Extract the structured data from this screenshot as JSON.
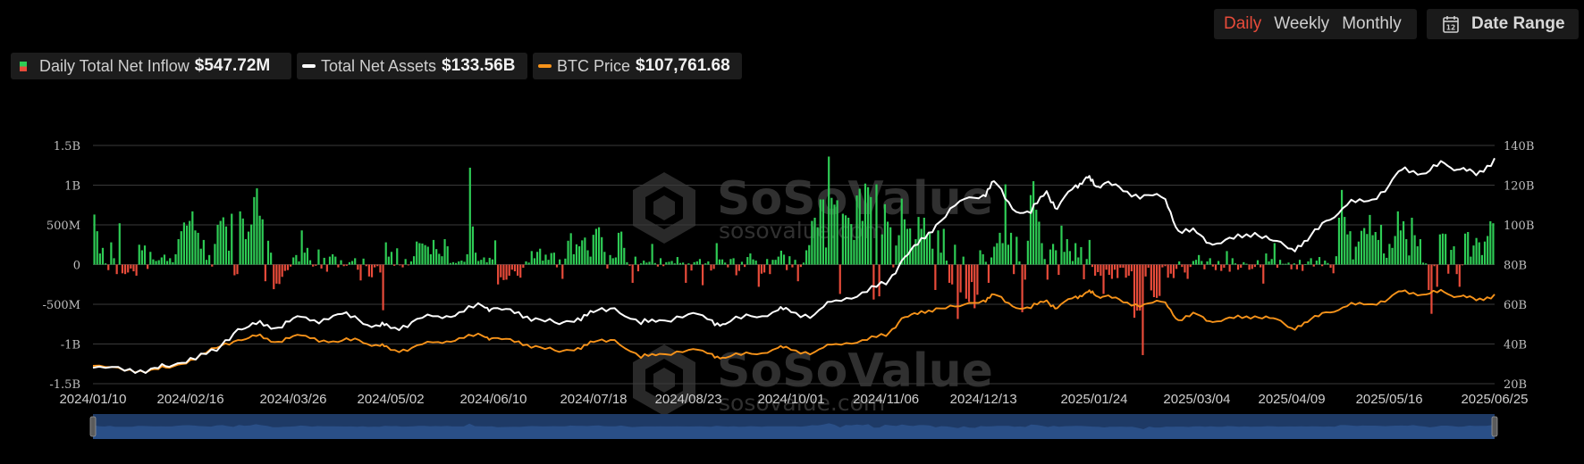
{
  "controls": {
    "tabs": [
      "Daily",
      "Weekly",
      "Monthly"
    ],
    "active_tab": "Daily",
    "date_range_label": "Date Range",
    "calendar_icon": "calendar-icon",
    "calendar_day": "12"
  },
  "legend": [
    {
      "label": "Daily Total Net Inflow",
      "value": "$547.72M",
      "swatch": "bicolor"
    },
    {
      "label": "Total Net Assets",
      "value": "$133.56B",
      "swatch": "white-line"
    },
    {
      "label": "BTC Price",
      "value": "$107,761.68",
      "swatch": "orange-line"
    }
  ],
  "watermark": {
    "brand": "SoSoValue",
    "url": "sosovalue.com"
  },
  "colors": {
    "inflow_pos": "#2ecc55",
    "inflow_neg": "#e84b3a",
    "assets": "#ffffff",
    "btc": "#f7931a",
    "active_tab": "#e84b3a",
    "navigator": "#1e3a66"
  },
  "chart_data": {
    "type": "bar",
    "x_ticks": [
      "2024/01/10",
      "2024/02/16",
      "2024/03/26",
      "2024/05/02",
      "2024/06/10",
      "2024/07/18",
      "2024/08/23",
      "2024/10/01",
      "2024/11/06",
      "2024/12/13",
      "2025/01/24",
      "2025/03/04",
      "2025/04/09",
      "2025/05/16",
      "2025/06/25"
    ],
    "y_left_ticks": [
      "1.5B",
      "1B",
      "500M",
      "0",
      "-500M",
      "-1B",
      "-1.5B"
    ],
    "y_left_range": [
      -1500,
      1500
    ],
    "y_left_unit": "M USD",
    "y_right_ticks": [
      "140B",
      "120B",
      "100B",
      "80B",
      "60B",
      "40B",
      "20B"
    ],
    "y_right_range": [
      20,
      140
    ],
    "y_right_unit": "B",
    "grid": true,
    "series": [
      {
        "name": "Daily Total Net Inflow",
        "type": "bar",
        "axis": "left",
        "values": [
          630,
          420,
          140,
          210,
          15,
          -70,
          280,
          80,
          -120,
          520,
          -110,
          -120,
          -100,
          -50,
          -85,
          -140,
          250,
          180,
          240,
          -55,
          160,
          65,
          45,
          55,
          90,
          125,
          45,
          80,
          30,
          130,
          320,
          420,
          530,
          490,
          550,
          670,
          430,
          400,
          200,
          310,
          60,
          120,
          -25,
          260,
          500,
          550,
          595,
          480,
          175,
          640,
          -135,
          -120,
          670,
          580,
          320,
          415,
          505,
          850,
          960,
          615,
          570,
          -210,
          300,
          150,
          -310,
          -240,
          -245,
          -155,
          -80,
          -70,
          -25,
          90,
          120,
          40,
          430,
          150,
          210,
          55,
          -25,
          -15,
          190,
          -50,
          85,
          -90,
          100,
          130,
          100,
          -35,
          55,
          -20,
          -15,
          30,
          45,
          80,
          -65,
          -200,
          75,
          -20,
          -150,
          -160,
          -35,
          -20,
          -100,
          -575,
          280,
          100,
          160,
          -15,
          205,
          -10,
          -35,
          70,
          -10,
          40,
          105,
          290,
          270,
          265,
          245,
          225,
          130,
          310,
          195,
          135,
          105,
          320,
          230,
          20,
          30,
          20,
          40,
          50,
          35,
          130,
          1220,
          480,
          150,
          45,
          60,
          90,
          30,
          85,
          65,
          305,
          -250,
          -160,
          -195,
          -190,
          -140,
          -65,
          -85,
          -140,
          -165,
          -40,
          40,
          25,
          170,
          80,
          160,
          200,
          50,
          125,
          60,
          145,
          150,
          -35,
          65,
          -180,
          75,
          300,
          395,
          130,
          255,
          230,
          305,
          340,
          180,
          100,
          375,
          450,
          470,
          345,
          160,
          -50,
          120,
          80,
          90,
          400,
          415,
          210,
          30,
          -15,
          -230,
          100,
          -85,
          15,
          50,
          25,
          35,
          260,
          20,
          -25,
          80,
          -20,
          30,
          35,
          45,
          15,
          95,
          20,
          25,
          -230,
          15,
          -75,
          30,
          40,
          70,
          -260,
          15,
          40,
          -75,
          -55,
          270,
          65,
          65,
          25,
          -35,
          70,
          80,
          -135,
          -80,
          35,
          -30,
          95,
          140,
          65,
          50,
          -280,
          -115,
          -100,
          70,
          -120,
          60,
          60,
          100,
          175,
          125,
          -70,
          105,
          -35,
          60,
          -210,
          -30,
          25,
          180,
          245,
          550,
          590,
          470,
          820,
          820,
          215,
          1360,
          840,
          755,
          810,
          -370,
          640,
          620,
          590,
          510,
          310,
          870,
          955,
          550,
          1020,
          975,
          850,
          -440,
          1010,
          -400,
          380,
          760,
          540,
          470,
          -35,
          240,
          370,
          830,
          570,
          450,
          455,
          210,
          320,
          600,
          450,
          590,
          380,
          400,
          200,
          -320,
          430,
          150,
          450,
          50,
          -230,
          -250,
          250,
          -685,
          -350,
          100,
          -430,
          -470,
          -220,
          -550,
          -380,
          180,
          130,
          35,
          -230,
          90,
          225,
          270,
          400,
          270,
          1010,
          250,
          400,
          -120,
          350,
          40,
          -600,
          -190,
          300,
          875,
          1050,
          690,
          540,
          270,
          70,
          -190,
          190,
          260,
          180,
          -130,
          490,
          160,
          320,
          170,
          45,
          270,
          90,
          220,
          -185,
          70,
          310,
          -30,
          -140,
          -95,
          -140,
          -370,
          -65,
          -130,
          -180,
          -65,
          -170,
          -40,
          -40,
          -165,
          -140,
          -85,
          -670,
          -580,
          -580,
          -1140,
          -150,
          -40,
          -325,
          -410,
          -420,
          -395,
          -35,
          -20,
          -165,
          -115,
          -170,
          -55,
          40,
          -30,
          -100,
          -180,
          -30,
          45,
          60,
          120,
          45,
          -60,
          40,
          80,
          -25,
          -70,
          45,
          -80,
          -40,
          170,
          -90,
          80,
          15,
          -65,
          -40,
          30,
          10,
          -65,
          -55,
          -30,
          55,
          -35,
          -240,
          140,
          40,
          70,
          270,
          -40,
          60,
          10,
          10,
          25,
          -60,
          15,
          -60,
          60,
          -80,
          5,
          40,
          80,
          -25,
          50,
          95,
          -20,
          50,
          20,
          -40,
          -110,
          105,
          590,
          940,
          600,
          380,
          420,
          65,
          225,
          290,
          425,
          460,
          385,
          625,
          370,
          410,
          310,
          500,
          140,
          85,
          260,
          210,
          360,
          670,
          430,
          545,
          320,
          115,
          590,
          370,
          230,
          320,
          25,
          15,
          -320,
          -620,
          -20,
          -280,
          380,
          390,
          385,
          -115,
          185,
          230,
          -120,
          -280,
          -1,
          390,
          410,
          100,
          240,
          335,
          280,
          120,
          290,
          360,
          545,
          520
        ]
      },
      {
        "name": "Total Net Assets",
        "type": "line",
        "axis": "right",
        "points": [
          [
            "2024/01/10",
            28.0
          ],
          [
            "2024/01/22",
            26.5
          ],
          [
            "2024/02/01",
            27.6
          ],
          [
            "2024/02/08",
            28.5
          ],
          [
            "2024/02/16",
            33.0
          ],
          [
            "2024/02/26",
            36.5
          ],
          [
            "2024/03/05",
            47.5
          ],
          [
            "2024/03/12",
            50.0
          ],
          [
            "2024/03/19",
            48.0
          ],
          [
            "2024/03/26",
            53.0
          ],
          [
            "2024/04/03",
            52.0
          ],
          [
            "2024/04/12",
            55.0
          ],
          [
            "2024/04/20",
            52.0
          ],
          [
            "2024/04/28",
            49.0
          ],
          [
            "2024/05/02",
            48.0
          ],
          [
            "2024/05/10",
            51.0
          ],
          [
            "2024/05/20",
            54.0
          ],
          [
            "2024/05/28",
            56.0
          ],
          [
            "2024/06/06",
            59.0
          ],
          [
            "2024/06/10",
            58.0
          ],
          [
            "2024/06/18",
            55.5
          ],
          [
            "2024/06/26",
            53.0
          ],
          [
            "2024/07/05",
            50.0
          ],
          [
            "2024/07/12",
            53.0
          ],
          [
            "2024/07/18",
            56.0
          ],
          [
            "2024/07/26",
            58.0
          ],
          [
            "2024/08/05",
            50.0
          ],
          [
            "2024/08/12",
            52.0
          ],
          [
            "2024/08/23",
            55.0
          ],
          [
            "2024/09/01",
            52.0
          ],
          [
            "2024/09/06",
            50.0
          ],
          [
            "2024/09/16",
            54.0
          ],
          [
            "2024/09/26",
            57.0
          ],
          [
            "2024/10/01",
            56.0
          ],
          [
            "2024/10/10",
            55.0
          ],
          [
            "2024/10/18",
            62.0
          ],
          [
            "2024/10/28",
            66.0
          ],
          [
            "2024/11/06",
            70.0
          ],
          [
            "2024/11/12",
            82.0
          ],
          [
            "2024/11/18",
            90.0
          ],
          [
            "2024/11/25",
            100.0
          ],
          [
            "2024/12/04",
            112.0
          ],
          [
            "2024/12/13",
            115.0
          ],
          [
            "2024/12/17",
            122.0
          ],
          [
            "2024/12/24",
            108.0
          ],
          [
            "2024/12/31",
            106.0
          ],
          [
            "2025/01/06",
            117.0
          ],
          [
            "2025/01/10",
            108.0
          ],
          [
            "2025/01/17",
            120.0
          ],
          [
            "2025/01/21",
            124.0
          ],
          [
            "2025/01/24",
            120.0
          ],
          [
            "2025/01/28",
            121.0
          ],
          [
            "2025/02/04",
            117.0
          ],
          [
            "2025/02/12",
            115.0
          ],
          [
            "2025/02/20",
            113.0
          ],
          [
            "2025/02/25",
            97.0
          ],
          [
            "2025/03/04",
            96.0
          ],
          [
            "2025/03/10",
            90.0
          ],
          [
            "2025/03/18",
            93.0
          ],
          [
            "2025/03/26",
            96.0
          ],
          [
            "2025/04/02",
            92.0
          ],
          [
            "2025/04/09",
            88.0
          ],
          [
            "2025/04/15",
            92.0
          ],
          [
            "2025/04/22",
            102.0
          ],
          [
            "2025/04/30",
            110.0
          ],
          [
            "2025/05/08",
            112.0
          ],
          [
            "2025/05/16",
            120.0
          ],
          [
            "2025/05/22",
            129.0
          ],
          [
            "2025/05/30",
            126.0
          ],
          [
            "2025/06/06",
            131.0
          ],
          [
            "2025/06/12",
            128.0
          ],
          [
            "2025/06/18",
            125.0
          ],
          [
            "2025/06/25",
            133.56
          ]
        ]
      },
      {
        "name": "BTC Price",
        "type": "line",
        "axis": "right",
        "points": [
          [
            "2024/01/10",
            29.0
          ],
          [
            "2024/01/22",
            26.5
          ],
          [
            "2024/02/01",
            27.0
          ],
          [
            "2024/02/08",
            28.0
          ],
          [
            "2024/02/16",
            32.0
          ],
          [
            "2024/02/26",
            38.0
          ],
          [
            "2024/03/05",
            42.0
          ],
          [
            "2024/03/12",
            44.0
          ],
          [
            "2024/03/19",
            41.0
          ],
          [
            "2024/03/26",
            44.0
          ],
          [
            "2024/04/03",
            43.0
          ],
          [
            "2024/04/12",
            41.0
          ],
          [
            "2024/04/20",
            42.0
          ],
          [
            "2024/04/28",
            39.0
          ],
          [
            "2024/05/02",
            37.0
          ],
          [
            "2024/05/10",
            38.0
          ],
          [
            "2024/05/20",
            41.0
          ],
          [
            "2024/05/28",
            43.0
          ],
          [
            "2024/06/06",
            44.0
          ],
          [
            "2024/06/10",
            43.0
          ],
          [
            "2024/06/18",
            41.0
          ],
          [
            "2024/06/26",
            39.0
          ],
          [
            "2024/07/05",
            36.0
          ],
          [
            "2024/07/12",
            38.0
          ],
          [
            "2024/07/18",
            41.0
          ],
          [
            "2024/07/26",
            42.0
          ],
          [
            "2024/08/05",
            33.0
          ],
          [
            "2024/08/12",
            35.0
          ],
          [
            "2024/08/23",
            37.0
          ],
          [
            "2024/09/01",
            35.0
          ],
          [
            "2024/09/06",
            33.0
          ],
          [
            "2024/09/16",
            35.0
          ],
          [
            "2024/09/26",
            38.0
          ],
          [
            "2024/10/01",
            37.0
          ],
          [
            "2024/10/10",
            36.0
          ],
          [
            "2024/10/18",
            40.0
          ],
          [
            "2024/10/28",
            42.0
          ],
          [
            "2024/11/06",
            44.0
          ],
          [
            "2024/11/12",
            53.0
          ],
          [
            "2024/11/18",
            55.0
          ],
          [
            "2024/11/25",
            58.0
          ],
          [
            "2024/12/04",
            59.0
          ],
          [
            "2024/12/13",
            62.0
          ],
          [
            "2024/12/17",
            65.0
          ],
          [
            "2024/12/24",
            59.0
          ],
          [
            "2024/12/31",
            58.0
          ],
          [
            "2025/01/06",
            62.0
          ],
          [
            "2025/01/10",
            58.0
          ],
          [
            "2025/01/17",
            64.0
          ],
          [
            "2025/01/21",
            66.0
          ],
          [
            "2025/01/24",
            65.0
          ],
          [
            "2025/01/28",
            64.0
          ],
          [
            "2025/02/04",
            61.0
          ],
          [
            "2025/02/12",
            60.0
          ],
          [
            "2025/02/20",
            61.0
          ],
          [
            "2025/02/25",
            52.0
          ],
          [
            "2025/03/04",
            55.0
          ],
          [
            "2025/03/10",
            51.0
          ],
          [
            "2025/03/18",
            53.0
          ],
          [
            "2025/03/26",
            54.0
          ],
          [
            "2025/04/02",
            53.0
          ],
          [
            "2025/04/09",
            48.0
          ],
          [
            "2025/04/15",
            51.0
          ],
          [
            "2025/04/22",
            56.0
          ],
          [
            "2025/04/30",
            59.0
          ],
          [
            "2025/05/08",
            60.0
          ],
          [
            "2025/05/16",
            63.0
          ],
          [
            "2025/05/22",
            67.0
          ],
          [
            "2025/05/30",
            65.0
          ],
          [
            "2025/06/06",
            66.0
          ],
          [
            "2025/06/12",
            64.0
          ],
          [
            "2025/06/18",
            62.0
          ],
          [
            "2025/06/25",
            65.0
          ]
        ]
      }
    ]
  }
}
